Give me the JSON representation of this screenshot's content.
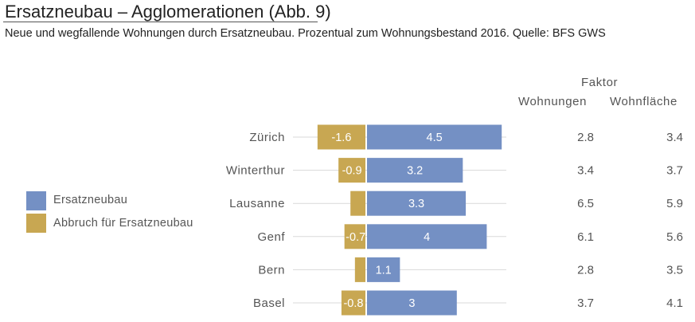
{
  "header": {
    "title": "Ersatzneubau – Agglomerationen  (Abb. 9)",
    "subtitle": "Neue und wegfallende Wohnungen durch Ersatzneubau. Prozentual zum Wohnungsbestand 2016. Quelle: BFS GWS"
  },
  "table_header": {
    "group": "Faktor",
    "col1": "Wohnungen",
    "col2": "Wohnfläche"
  },
  "legend": [
    {
      "label": "Ersatzneubau",
      "color": "#7490c4"
    },
    {
      "label": "Abbruch für Ersatzneubau",
      "color": "#c8a752"
    }
  ],
  "chart_data": {
    "type": "bar",
    "orientation": "horizontal",
    "title": "Ersatzneubau – Agglomerationen  (Abb. 9)",
    "subtitle": "Neue und wegfallende Wohnungen durch Ersatzneubau. Prozentual zum Wohnungsbestand 2016. Quelle: BFS GWS",
    "categories": [
      "Zürich",
      "Winterthur",
      "Lausanne",
      "Genf",
      "Bern",
      "Basel"
    ],
    "series": [
      {
        "name": "Abbruch für Ersatzneubau",
        "color": "#c8a752",
        "values": [
          -1.6,
          -0.9,
          -0.5,
          -0.7,
          -0.35,
          -0.8
        ],
        "labels": [
          "-1.6",
          "-0.9",
          "",
          "-0.7",
          "",
          "-0.8"
        ]
      },
      {
        "name": "Ersatzneubau",
        "color": "#7490c4",
        "values": [
          4.5,
          3.2,
          3.3,
          4,
          1.1,
          3
        ],
        "labels": [
          "4.5",
          "3.2",
          "3.3",
          "4",
          "1.1",
          "3"
        ]
      }
    ],
    "xlim": [
      -2.45,
      4.65
    ],
    "grid": false,
    "legend_position": "left",
    "table": {
      "columns": [
        "Wohnungen",
        "Wohnfläche"
      ],
      "group_header": "Faktor",
      "rows": [
        [
          "2.8",
          "3.4"
        ],
        [
          "3.4",
          "3.7"
        ],
        [
          "6.5",
          "5.9"
        ],
        [
          "6.1",
          "5.6"
        ],
        [
          "2.8",
          "3.5"
        ],
        [
          "3.7",
          "4.1"
        ]
      ]
    }
  }
}
